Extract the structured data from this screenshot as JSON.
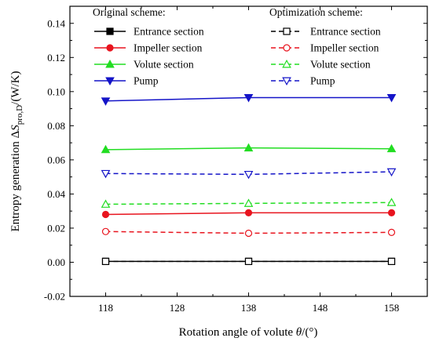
{
  "chart_data": {
    "type": "line",
    "xlabel": "Rotation angle of volute θ/(°)",
    "xlabel_parts": {
      "pre": "Rotation angle of volute ",
      "var": "θ",
      "post": "/(°)"
    },
    "ylabel": "Entropy generation ΔSpro,D/(W/K)",
    "ylabel_parts": {
      "pre": "Entropy generation Δ",
      "var": "S",
      "sub": "pro,D",
      "post": "/(W/K)"
    },
    "x": [
      118,
      138,
      158
    ],
    "xlim": [
      113,
      163
    ],
    "ylim": [
      -0.02,
      0.15
    ],
    "x_ticks": [
      "118",
      "128",
      "138",
      "148",
      "158"
    ],
    "x_tick_values": [
      118,
      128,
      138,
      148,
      158
    ],
    "y_ticks": [
      "-0.02",
      "0.00",
      "0.02",
      "0.04",
      "0.06",
      "0.08",
      "0.10",
      "0.12",
      "0.14"
    ],
    "y_tick_values": [
      -0.02,
      0.0,
      0.02,
      0.04,
      0.06,
      0.08,
      0.1,
      0.12,
      0.14
    ],
    "grid": false,
    "legend_position": "top",
    "legend_groups": [
      "Original scheme:",
      "Optimization scheme:"
    ],
    "series": [
      {
        "name": "Entrance section",
        "group": 0,
        "color": "#000000",
        "marker": "square",
        "filled": true,
        "dashed": false,
        "values": [
          0.0005,
          0.0005,
          0.0005
        ]
      },
      {
        "name": "Impeller section",
        "group": 0,
        "color": "#e8141e",
        "marker": "circle",
        "filled": true,
        "dashed": false,
        "values": [
          0.028,
          0.029,
          0.029
        ]
      },
      {
        "name": "Volute section",
        "group": 0,
        "color": "#22dd22",
        "marker": "triangle-up",
        "filled": true,
        "dashed": false,
        "values": [
          0.066,
          0.067,
          0.0665
        ]
      },
      {
        "name": "Pump",
        "group": 0,
        "color": "#1414c8",
        "marker": "triangle-down",
        "filled": true,
        "dashed": false,
        "values": [
          0.0945,
          0.0965,
          0.0965
        ]
      },
      {
        "name": "Entrance section",
        "group": 1,
        "color": "#000000",
        "marker": "square",
        "filled": false,
        "dashed": true,
        "values": [
          0.0005,
          0.0005,
          0.0005
        ]
      },
      {
        "name": "Impeller section",
        "group": 1,
        "color": "#e8141e",
        "marker": "circle",
        "filled": false,
        "dashed": true,
        "values": [
          0.018,
          0.017,
          0.0175
        ]
      },
      {
        "name": "Volute section",
        "group": 1,
        "color": "#22dd22",
        "marker": "triangle-up",
        "filled": false,
        "dashed": true,
        "values": [
          0.034,
          0.0345,
          0.035
        ]
      },
      {
        "name": "Pump",
        "group": 1,
        "color": "#1414c8",
        "marker": "triangle-down",
        "filled": false,
        "dashed": true,
        "values": [
          0.052,
          0.0515,
          0.053
        ]
      }
    ]
  }
}
